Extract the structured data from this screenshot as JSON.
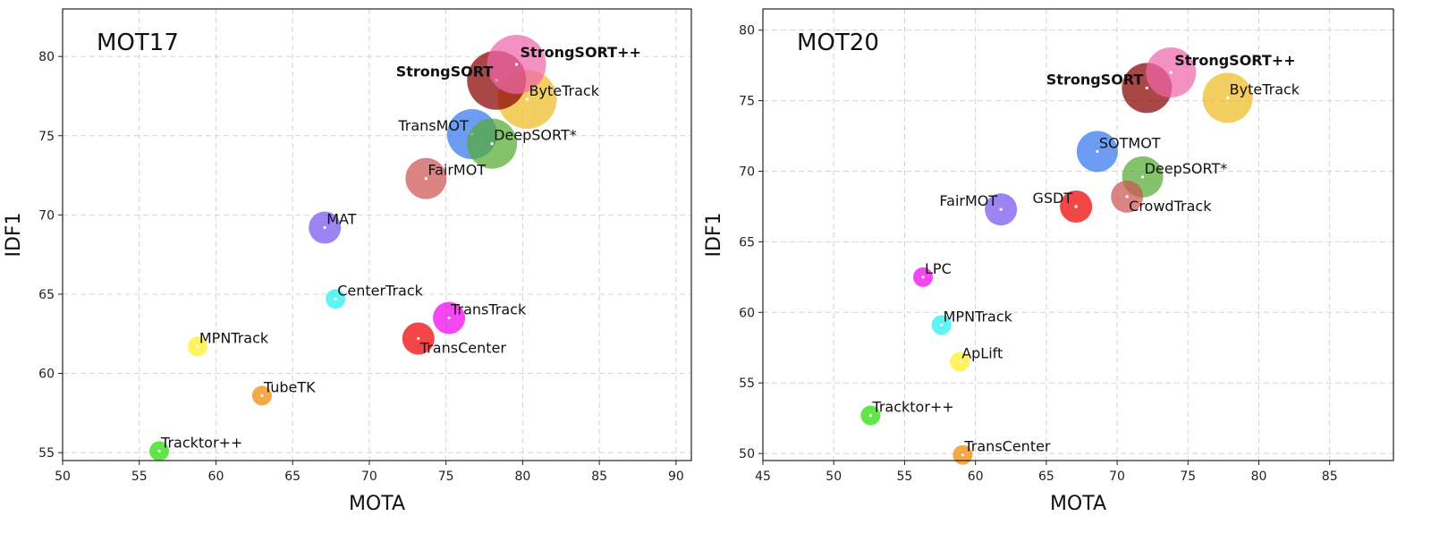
{
  "chart_data": [
    {
      "type": "scatter",
      "title": "MOT17",
      "xlabel": "MOTA",
      "ylabel": "IDF1",
      "xlim": [
        50,
        91
      ],
      "ylim": [
        54.5,
        83
      ],
      "xticks": [
        50,
        55,
        60,
        65,
        70,
        75,
        80,
        85,
        90
      ],
      "yticks": [
        55,
        60,
        65,
        70,
        75,
        80
      ],
      "grid": true,
      "points": [
        {
          "label": "Tracktor++",
          "x": 56.3,
          "y": 55.1,
          "color": "#22dd00",
          "size": "small",
          "bold": false,
          "label_pos": "top-right"
        },
        {
          "label": "MPNTrack",
          "x": 58.8,
          "y": 61.7,
          "color": "#ffee22",
          "size": "small",
          "bold": false,
          "label_pos": "top-right"
        },
        {
          "label": "TubeTK",
          "x": 63.0,
          "y": 58.6,
          "color": "#ee8800",
          "size": "small",
          "bold": false,
          "label_pos": "top-right"
        },
        {
          "label": "CenterTrack",
          "x": 67.8,
          "y": 64.7,
          "color": "#22eeee",
          "size": "small",
          "bold": false,
          "label_pos": "top-right"
        },
        {
          "label": "MAT",
          "x": 67.1,
          "y": 69.2,
          "color": "#7755ee",
          "size": "medium",
          "bold": false,
          "label_pos": "top-right"
        },
        {
          "label": "TransCenter",
          "x": 73.2,
          "y": 62.2,
          "color": "#ee0000",
          "size": "medium",
          "bold": false,
          "label_pos": "bottom-right"
        },
        {
          "label": "TransTrack",
          "x": 75.2,
          "y": 63.5,
          "color": "#ee00ee",
          "size": "medium",
          "bold": false,
          "label_pos": "top-right"
        },
        {
          "label": "FairMOT",
          "x": 73.7,
          "y": 72.3,
          "color": "#cc5555",
          "size": "large",
          "bold": false,
          "label_pos": "top-right"
        },
        {
          "label": "TransMOT",
          "x": 76.7,
          "y": 75.1,
          "color": "#3377ee",
          "size": "xlarge",
          "bold": false,
          "label_pos": "left"
        },
        {
          "label": "DeepSORT*",
          "x": 78.0,
          "y": 74.5,
          "color": "#55aa33",
          "size": "xlarge",
          "bold": false,
          "label_pos": "top-right"
        },
        {
          "label": "ByteTrack",
          "x": 80.3,
          "y": 77.3,
          "color": "#eebb22",
          "size": "xxlarge",
          "bold": false,
          "label_pos": "top-right"
        },
        {
          "label": "StrongSORT",
          "x": 78.3,
          "y": 78.5,
          "color": "#880000",
          "size": "xxlarge",
          "bold": true,
          "label_pos": "left"
        },
        {
          "label": "StrongSORT++",
          "x": 79.6,
          "y": 79.5,
          "color": "#ee66aa",
          "size": "xxlarge",
          "bold": true,
          "label_pos": "right"
        }
      ]
    },
    {
      "type": "scatter",
      "title": "MOT20",
      "xlabel": "MOTA",
      "ylabel": "IDF1",
      "xlim": [
        45,
        89.5
      ],
      "ylim": [
        49.5,
        81.5
      ],
      "xticks": [
        45,
        50,
        55,
        60,
        65,
        70,
        75,
        80,
        85
      ],
      "yticks": [
        50,
        55,
        60,
        65,
        70,
        75,
        80
      ],
      "grid": true,
      "points": [
        {
          "label": "TransCenter",
          "x": 59.1,
          "y": 49.9,
          "color": "#ee8800",
          "size": "small",
          "bold": false,
          "label_pos": "top-right"
        },
        {
          "label": "Tracktor++",
          "x": 52.6,
          "y": 52.7,
          "color": "#22dd00",
          "size": "small",
          "bold": false,
          "label_pos": "top-right"
        },
        {
          "label": "ApLift",
          "x": 58.9,
          "y": 56.5,
          "color": "#ffee22",
          "size": "small",
          "bold": false,
          "label_pos": "top-right"
        },
        {
          "label": "MPNTrack",
          "x": 57.6,
          "y": 59.1,
          "color": "#22eeee",
          "size": "small",
          "bold": false,
          "label_pos": "top-right"
        },
        {
          "label": "LPC",
          "x": 56.3,
          "y": 62.5,
          "color": "#ee00ee",
          "size": "small",
          "bold": false,
          "label_pos": "top-right"
        },
        {
          "label": "FairMOT",
          "x": 61.8,
          "y": 67.3,
          "color": "#7755ee",
          "size": "medium",
          "bold": false,
          "label_pos": "left"
        },
        {
          "label": "GSDT",
          "x": 67.1,
          "y": 67.5,
          "color": "#ee0000",
          "size": "medium",
          "bold": false,
          "label_pos": "left"
        },
        {
          "label": "CrowdTrack",
          "x": 70.7,
          "y": 68.2,
          "color": "#cc5555",
          "size": "medium",
          "bold": false,
          "label_pos": "bottom-right"
        },
        {
          "label": "DeepSORT*",
          "x": 71.8,
          "y": 69.6,
          "color": "#55aa33",
          "size": "large",
          "bold": false,
          "label_pos": "top-right"
        },
        {
          "label": "SOTMOT",
          "x": 68.6,
          "y": 71.4,
          "color": "#3377ee",
          "size": "large",
          "bold": false,
          "label_pos": "top-right"
        },
        {
          "label": "ByteTrack",
          "x": 77.8,
          "y": 75.2,
          "color": "#eebb22",
          "size": "xlarge",
          "bold": false,
          "label_pos": "top-right"
        },
        {
          "label": "StrongSORT",
          "x": 72.1,
          "y": 75.9,
          "color": "#880000",
          "size": "xlarge",
          "bold": true,
          "label_pos": "left"
        },
        {
          "label": "StrongSORT++",
          "x": 73.8,
          "y": 77.0,
          "color": "#ee66aa",
          "size": "xlarge",
          "bold": true,
          "label_pos": "right"
        }
      ]
    }
  ]
}
